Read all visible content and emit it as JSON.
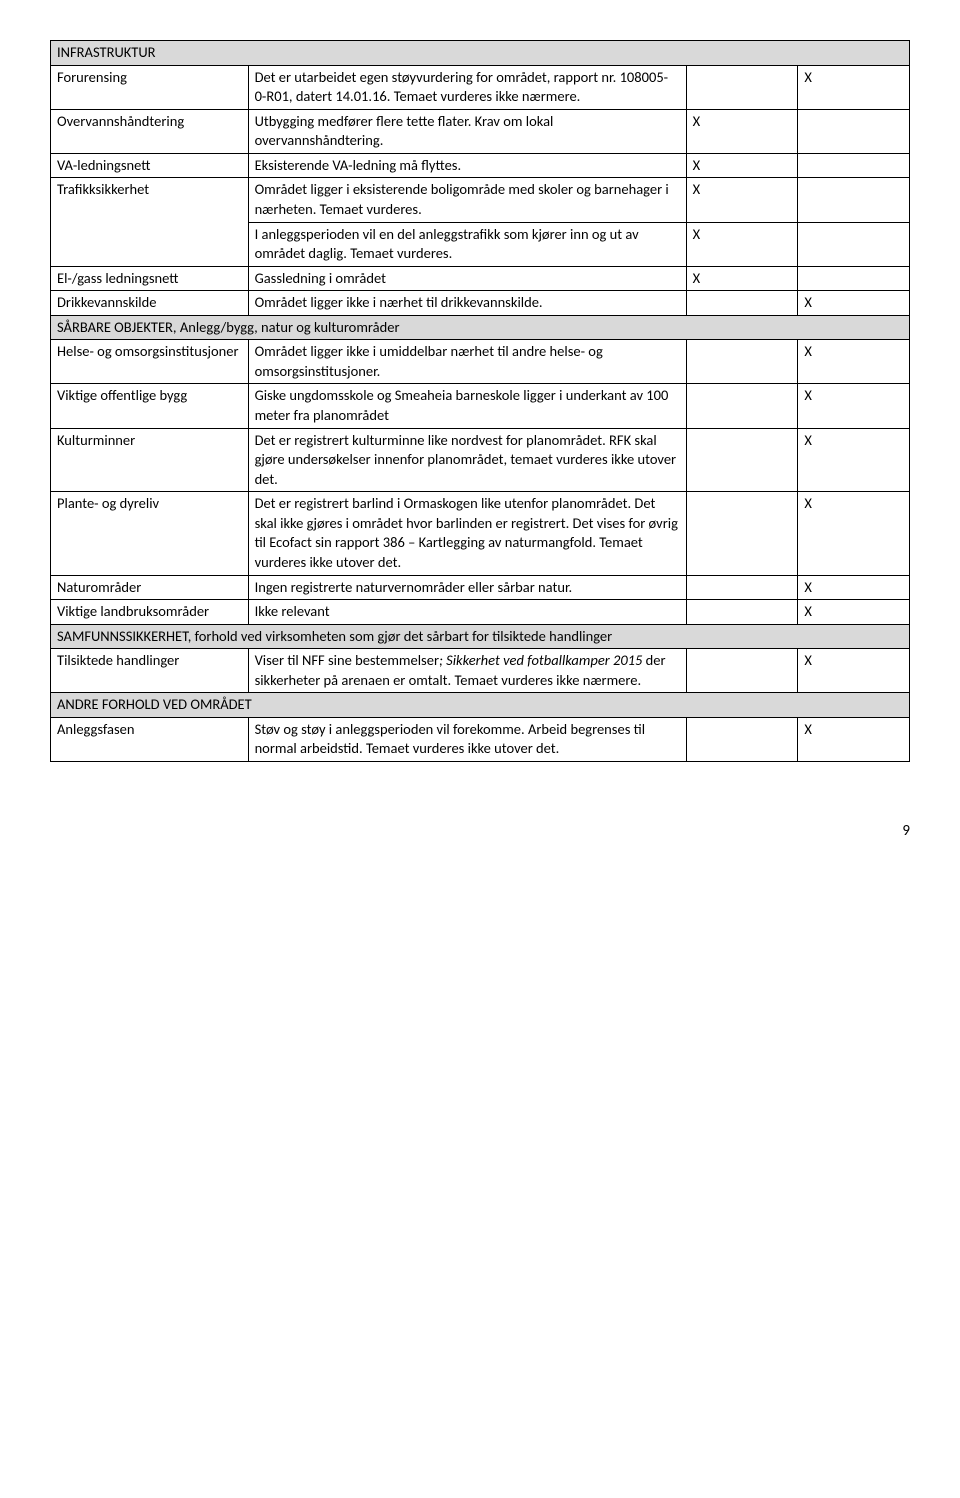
{
  "colors": {
    "sectionHeaderBg": "#d9d9d9",
    "border": "#000000",
    "pageBg": "#ffffff"
  },
  "pageNumber": "9",
  "rows": [
    {
      "type": "section",
      "text": "INFRASTRUKTUR"
    },
    {
      "type": "data",
      "c1": "Forurensing",
      "c2": "Det er utarbeidet egen støyvurdering for området, rapport nr. 108005-0-R01, datert 14.01.16. Temaet vurderes ikke nærmere.",
      "c3": "",
      "c4": "X"
    },
    {
      "type": "data",
      "c1": "Overvannshåndtering",
      "c2": "Utbygging medfører flere tette flater. Krav om lokal overvannshåndtering.",
      "c3": "X",
      "c4": ""
    },
    {
      "type": "data",
      "c1": "VA-ledningsnett",
      "c2": "Eksisterende VA-ledning må flyttes.",
      "c3": "X",
      "c4": ""
    },
    {
      "type": "data",
      "c1": "Trafikksikkerhet",
      "c1rowspan": 2,
      "c2": "Området ligger i eksisterende boligområde med skoler og barnehager i nærheten. Temaet vurderes.",
      "c3": "X",
      "c4": ""
    },
    {
      "type": "data",
      "noC1": true,
      "c2": "I anleggsperioden vil en del anleggstrafikk som kjører inn og ut av området daglig. Temaet vurderes.",
      "c3": "X",
      "c4": ""
    },
    {
      "type": "data",
      "c1": "El-/gass ledningsnett",
      "c2": "Gassledning i området",
      "c3": "X",
      "c4": ""
    },
    {
      "type": "data",
      "c1": "Drikkevannskilde",
      "c2": "Området ligger ikke i nærhet til drikkevannskilde.",
      "c3": "",
      "c4": "X"
    },
    {
      "type": "section",
      "text": "SÅRBARE OBJEKTER, Anlegg/bygg, natur og kulturområder"
    },
    {
      "type": "data",
      "c1": "Helse- og omsorgsinstitusjoner",
      "c2": "Området ligger ikke i umiddelbar nærhet til andre helse- og omsorgsinstitusjoner.",
      "c3": "",
      "c4": "X"
    },
    {
      "type": "data",
      "c1": "Viktige offentlige bygg",
      "c2": "Giske ungdomsskole og Smeaheia barneskole ligger i underkant av 100 meter fra planområdet",
      "c3": "",
      "c4": "X"
    },
    {
      "type": "data",
      "c1": "Kulturminner",
      "c2": "Det er registrert kulturminne like nordvest for planområdet. RFK skal gjøre undersøkelser innenfor planområdet, temaet vurderes ikke utover det.",
      "c3": "",
      "c4": "X"
    },
    {
      "type": "data",
      "c1": "Plante- og dyreliv",
      "c2": "Det er registrert barlind i Ormaskogen like utenfor planområdet. Det skal ikke gjøres i området hvor barlinden er registrert. Det vises for øvrig til Ecofact sin rapport 386 – Kartlegging av naturmangfold. Temaet vurderes ikke utover det.",
      "c3": "",
      "c4": "X"
    },
    {
      "type": "data",
      "c1": "Naturområder",
      "c2": "Ingen registrerte naturvernområder eller sårbar natur.",
      "c3": "",
      "c4": "X"
    },
    {
      "type": "data",
      "c1": "Viktige landbruksområder",
      "c2": "Ikke relevant",
      "c3": "",
      "c4": "X"
    },
    {
      "type": "section",
      "text": "SAMFUNNSSIKKERHET, forhold ved virksomheten som gjør det sårbart for tilsiktede handlinger"
    },
    {
      "type": "data",
      "c1": "Tilsiktede handlinger",
      "c2html": "Viser til NFF sine bestemmelser<span class=\"italic\">; Sikkerhet ved fotballkamper 2015 </span>der sikkerheter på arenaen er omtalt. Temaet vurderes ikke nærmere.",
      "c3": "",
      "c4": "X"
    },
    {
      "type": "section",
      "text": "ANDRE FORHOLD VED OMRÅDET"
    },
    {
      "type": "data",
      "c1": "Anleggsfasen",
      "c2": "Støv og støy i anleggsperioden vil forekomme. Arbeid begrenses til normal arbeidstid. Temaet vurderes ikke utover det.",
      "c3": "",
      "c4": "X"
    }
  ]
}
